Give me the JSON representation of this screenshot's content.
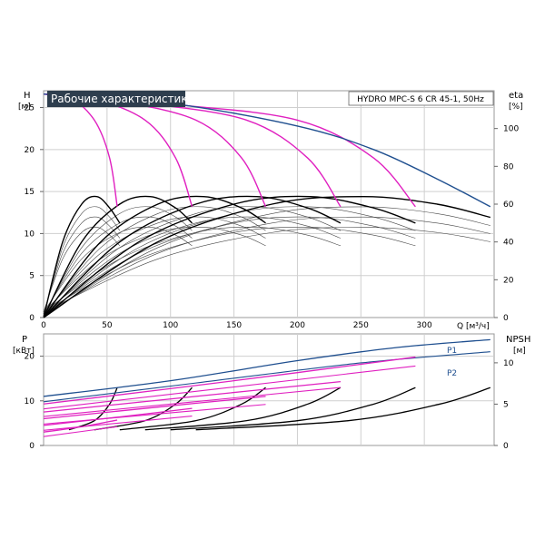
{
  "title": "Рабочие характеристики",
  "model": "HYDRO MPC-S 6 CR 45-1, 50Hz",
  "colors": {
    "magenta": "#e020c0",
    "blue": "#1f4f8f",
    "black": "#000000",
    "thin": "#444444",
    "grid": "#cfcfcf",
    "title_bg": "#2e3e4e"
  },
  "chart_data": [
    {
      "type": "line",
      "name": "head-efficiency",
      "left_axis": {
        "label": "H",
        "unit": "[м]",
        "range": [
          0,
          27
        ],
        "ticks": [
          0,
          5,
          10,
          15,
          20,
          25
        ]
      },
      "right_axis": {
        "label": "eta",
        "unit": "[%]",
        "range": [
          0,
          120
        ],
        "ticks": [
          0,
          20,
          40,
          60,
          80,
          100
        ]
      },
      "x_axis": {
        "label": "Q [м³/ч]",
        "range": [
          0,
          355
        ],
        "ticks": [
          0,
          50,
          100,
          150,
          200,
          250,
          300
        ]
      },
      "grid": true,
      "head_curves": [
        {
          "pumps": 1,
          "color": "magenta",
          "points": [
            [
              0,
              26.6
            ],
            [
              20,
              26.3
            ],
            [
              40,
              23.5
            ],
            [
              52,
              19
            ],
            [
              58,
              13.2
            ]
          ]
        },
        {
          "pumps": 2,
          "color": "magenta",
          "points": [
            [
              0,
              26.6
            ],
            [
              40,
              26.0
            ],
            [
              80,
              23.5
            ],
            [
              104,
              19
            ],
            [
              117,
              13.2
            ]
          ]
        },
        {
          "pumps": 3,
          "color": "magenta",
          "points": [
            [
              0,
              26.6
            ],
            [
              60,
              25.7
            ],
            [
              120,
              23.5
            ],
            [
              156,
              19
            ],
            [
              175,
              13.2
            ]
          ]
        },
        {
          "pumps": 4,
          "color": "magenta",
          "points": [
            [
              0,
              26.6
            ],
            [
              80,
              25.5
            ],
            [
              160,
              23.5
            ],
            [
              208,
              19
            ],
            [
              234,
              13.2
            ]
          ]
        },
        {
          "pumps": 5,
          "color": "magenta",
          "points": [
            [
              0,
              26.6
            ],
            [
              100,
              25.4
            ],
            [
              200,
              23.5
            ],
            [
              260,
              19
            ],
            [
              293,
              13.2
            ]
          ]
        },
        {
          "pumps": 6,
          "color": "blue",
          "points": [
            [
              0,
              26.6
            ],
            [
              100,
              25.5
            ],
            [
              200,
              22.8
            ],
            [
              260,
              20.0
            ],
            [
              310,
              16.5
            ],
            [
              352,
              13.2
            ]
          ]
        }
      ],
      "efficiency_curves": [
        {
          "pumps": 1,
          "points": [
            [
              0,
              0
            ],
            [
              15,
              40
            ],
            [
              30,
              60
            ],
            [
              42,
              64
            ],
            [
              52,
              58
            ],
            [
              60,
              50
            ]
          ]
        },
        {
          "pumps": 2,
          "points": [
            [
              0,
              0
            ],
            [
              30,
              40
            ],
            [
              60,
              60
            ],
            [
              84,
              64
            ],
            [
              104,
              58
            ],
            [
              117,
              50
            ]
          ]
        },
        {
          "pumps": 3,
          "points": [
            [
              0,
              0
            ],
            [
              45,
              40
            ],
            [
              90,
              60
            ],
            [
              126,
              64
            ],
            [
              156,
              58
            ],
            [
              175,
              50
            ]
          ]
        },
        {
          "pumps": 4,
          "points": [
            [
              0,
              0
            ],
            [
              60,
              40
            ],
            [
              120,
              60
            ],
            [
              168,
              64
            ],
            [
              208,
              58
            ],
            [
              234,
              50
            ]
          ]
        },
        {
          "pumps": 5,
          "points": [
            [
              0,
              0
            ],
            [
              75,
              40
            ],
            [
              150,
              60
            ],
            [
              210,
              64
            ],
            [
              260,
              58
            ],
            [
              293,
              50
            ]
          ]
        },
        {
          "pumps": 6,
          "points": [
            [
              0,
              0
            ],
            [
              90,
              40
            ],
            [
              180,
              60
            ],
            [
              252,
              64
            ],
            [
              310,
              60
            ],
            [
              352,
              53
            ]
          ]
        }
      ]
    },
    {
      "type": "line",
      "name": "power-npsh",
      "left_axis": {
        "label": "P",
        "unit": "[кВт]",
        "range": [
          0,
          25
        ],
        "ticks": [
          0,
          10,
          20
        ]
      },
      "right_axis": {
        "label": "NPSH",
        "unit": "[м]",
        "range": [
          0,
          13.5
        ],
        "ticks": [
          0,
          5,
          10
        ]
      },
      "x_axis": {
        "range": [
          0,
          355
        ],
        "ticks": []
      },
      "grid": true,
      "series_labels": {
        "p1": "P1",
        "p2": "P2"
      },
      "p1_curves": [
        {
          "pumps": 1,
          "color": "magenta",
          "points": [
            [
              0,
              3.0
            ],
            [
              30,
              4.2
            ],
            [
              58,
              5.7
            ]
          ]
        },
        {
          "pumps": 2,
          "color": "magenta",
          "points": [
            [
              0,
              4.5
            ],
            [
              60,
              6.4
            ],
            [
              117,
              8.3
            ]
          ]
        },
        {
          "pumps": 3,
          "color": "magenta",
          "points": [
            [
              0,
              6.0
            ],
            [
              90,
              8.6
            ],
            [
              175,
              11.0
            ]
          ]
        },
        {
          "pumps": 4,
          "color": "magenta",
          "points": [
            [
              0,
              7.5
            ],
            [
              120,
              11.0
            ],
            [
              234,
              14.3
            ]
          ]
        },
        {
          "pumps": 5,
          "color": "magenta",
          "points": [
            [
              0,
              9.3
            ],
            [
              150,
              14.5
            ],
            [
              293,
              19.8
            ]
          ]
        },
        {
          "pumps": 6,
          "color": "blue",
          "points": [
            [
              0,
              11.0
            ],
            [
              100,
              14.5
            ],
            [
              200,
              19.0
            ],
            [
              280,
              22.0
            ],
            [
              352,
              23.7
            ]
          ]
        }
      ],
      "p2_curves": [
        {
          "pumps": 1,
          "color": "magenta",
          "points": [
            [
              0,
              2.0
            ],
            [
              58,
              4.2
            ]
          ]
        },
        {
          "pumps": 2,
          "color": "magenta",
          "points": [
            [
              0,
              3.4
            ],
            [
              117,
              6.6
            ]
          ]
        },
        {
          "pumps": 3,
          "color": "magenta",
          "points": [
            [
              0,
              4.8
            ],
            [
              175,
              9.2
            ]
          ]
        },
        {
          "pumps": 4,
          "color": "magenta",
          "points": [
            [
              0,
              6.5
            ],
            [
              234,
              13.0
            ]
          ]
        },
        {
          "pumps": 5,
          "color": "magenta",
          "points": [
            [
              0,
              8.2
            ],
            [
              293,
              17.8
            ]
          ]
        },
        {
          "pumps": 6,
          "color": "blue",
          "points": [
            [
              0,
              9.8
            ],
            [
              120,
              14.0
            ],
            [
              250,
              18.5
            ],
            [
              352,
              21.0
            ]
          ]
        }
      ],
      "npsh_curves": [
        {
          "pumps": 1,
          "points": [
            [
              20,
              1.9
            ],
            [
              40,
              3.0
            ],
            [
              52,
              5.0
            ],
            [
              58,
              7.0
            ]
          ]
        },
        {
          "pumps": 2,
          "points": [
            [
              40,
              1.9
            ],
            [
              80,
              3.0
            ],
            [
              104,
              5.0
            ],
            [
              117,
              7.0
            ]
          ]
        },
        {
          "pumps": 3,
          "points": [
            [
              60,
              1.9
            ],
            [
              120,
              3.0
            ],
            [
              156,
              5.0
            ],
            [
              175,
              7.0
            ]
          ]
        },
        {
          "pumps": 4,
          "points": [
            [
              80,
              1.9
            ],
            [
              160,
              3.0
            ],
            [
              208,
              5.0
            ],
            [
              234,
              7.0
            ]
          ]
        },
        {
          "pumps": 5,
          "points": [
            [
              100,
              1.9
            ],
            [
              200,
              3.0
            ],
            [
              260,
              5.0
            ],
            [
              293,
              7.0
            ]
          ]
        },
        {
          "pumps": 6,
          "points": [
            [
              120,
              1.9
            ],
            [
              240,
              3.0
            ],
            [
              312,
              5.0
            ],
            [
              352,
              7.0
            ]
          ]
        }
      ]
    }
  ]
}
